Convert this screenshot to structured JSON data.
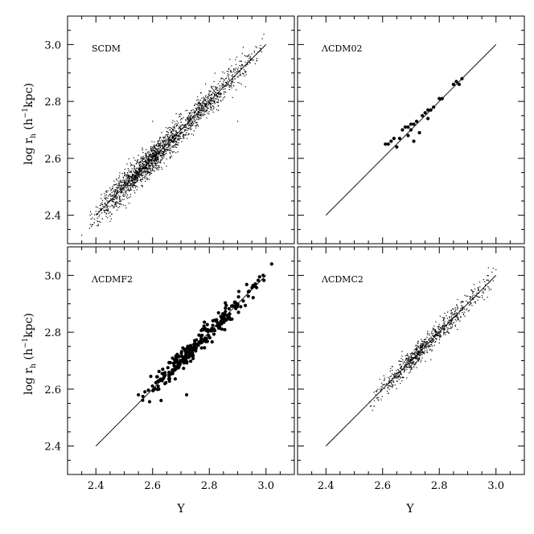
{
  "figure": {
    "ylabel_main": "log r",
    "ylabel_sub": "h",
    "ylabel_unit_open": " (h",
    "ylabel_unit_sup": "−1",
    "ylabel_unit_close": "kpc)",
    "xlabel": "Y"
  },
  "chart_data": [
    {
      "type": "scatter",
      "title": "SCDM",
      "xlim": [
        2.3,
        3.1
      ],
      "ylim": [
        2.3,
        3.1
      ],
      "xticks": [
        2.4,
        2.6,
        2.8,
        3.0
      ],
      "yticks": [
        2.4,
        2.6,
        2.8,
        3.0
      ],
      "fit_line": {
        "x": [
          2.4,
          3.0
        ],
        "y": [
          2.4,
          3.0
        ]
      },
      "marker": "dot-small",
      "point_count_approx": 2000,
      "x_range": [
        2.37,
        3.02
      ],
      "scatter_sigma": 0.025,
      "x_density_center": 2.62,
      "extra_points": [
        [
          2.6,
          2.73
        ],
        [
          2.9,
          2.73
        ],
        [
          2.35,
          2.33
        ]
      ]
    },
    {
      "type": "scatter",
      "title": "ΛCDM02",
      "xlim": [
        2.3,
        3.1
      ],
      "ylim": [
        2.3,
        3.1
      ],
      "xticks": [
        2.4,
        2.6,
        2.8,
        3.0
      ],
      "yticks": [
        2.4,
        2.6,
        2.8,
        3.0
      ],
      "fit_line": {
        "x": [
          2.4,
          3.0
        ],
        "y": [
          2.4,
          3.0
        ]
      },
      "marker": "dot-large",
      "points": [
        [
          2.61,
          2.65
        ],
        [
          2.62,
          2.65
        ],
        [
          2.63,
          2.66
        ],
        [
          2.64,
          2.67
        ],
        [
          2.65,
          2.64
        ],
        [
          2.66,
          2.67
        ],
        [
          2.67,
          2.7
        ],
        [
          2.68,
          2.71
        ],
        [
          2.69,
          2.71
        ],
        [
          2.7,
          2.72
        ],
        [
          2.7,
          2.7
        ],
        [
          2.71,
          2.72
        ],
        [
          2.72,
          2.73
        ],
        [
          2.71,
          2.66
        ],
        [
          2.74,
          2.75
        ],
        [
          2.75,
          2.76
        ],
        [
          2.76,
          2.77
        ],
        [
          2.77,
          2.77
        ],
        [
          2.78,
          2.78
        ],
        [
          2.8,
          2.81
        ],
        [
          2.81,
          2.81
        ],
        [
          2.85,
          2.86
        ],
        [
          2.86,
          2.87
        ],
        [
          2.87,
          2.86
        ],
        [
          2.88,
          2.88
        ],
        [
          2.73,
          2.69
        ],
        [
          2.69,
          2.68
        ],
        [
          2.76,
          2.74
        ]
      ]
    },
    {
      "type": "scatter",
      "title": "ΛCDMF2",
      "xlim": [
        2.3,
        3.1
      ],
      "ylim": [
        2.3,
        3.1
      ],
      "xticks": [
        2.4,
        2.6,
        2.8,
        3.0
      ],
      "yticks": [
        2.4,
        2.6,
        2.8,
        3.0
      ],
      "fit_line": {
        "x": [
          2.4,
          3.0
        ],
        "y": [
          2.4,
          3.0
        ]
      },
      "marker": "dot-large",
      "point_count_approx": 260,
      "x_range": [
        2.55,
        3.02
      ],
      "scatter_sigma": 0.02,
      "x_density_center": 2.74,
      "extra_points": [
        [
          2.55,
          2.58
        ],
        [
          2.63,
          2.56
        ],
        [
          2.72,
          2.58
        ],
        [
          2.92,
          2.91
        ],
        [
          3.02,
          3.04
        ],
        [
          2.99,
          3.0
        ]
      ]
    },
    {
      "type": "scatter",
      "title": "ΛCDMC2",
      "xlim": [
        2.3,
        3.1
      ],
      "ylim": [
        2.3,
        3.1
      ],
      "xticks": [
        2.4,
        2.6,
        2.8,
        3.0
      ],
      "yticks": [
        2.4,
        2.6,
        2.8,
        3.0
      ],
      "fit_line": {
        "x": [
          2.4,
          3.0
        ],
        "y": [
          2.4,
          3.0
        ]
      },
      "marker": "dot-small",
      "point_count_approx": 800,
      "x_range": [
        2.55,
        3.0
      ],
      "scatter_sigma": 0.02,
      "x_density_center": 2.74,
      "extra_points": [
        [
          3.0,
          3.02
        ],
        [
          2.57,
          2.54
        ]
      ]
    }
  ]
}
